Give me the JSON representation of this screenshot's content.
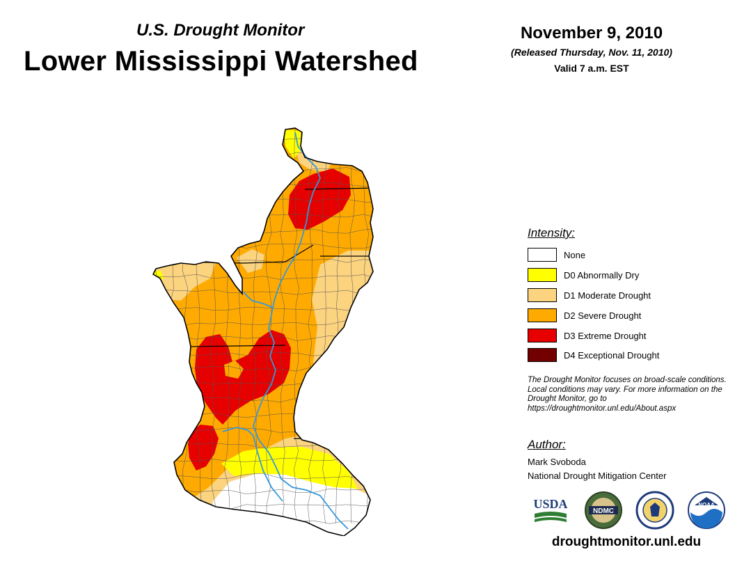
{
  "header": {
    "subtitle": "U.S. Drought Monitor",
    "title": "Lower Mississippi Watershed",
    "date": "November 9, 2010",
    "released": "(Released Thursday, Nov. 11, 2010)",
    "valid": "Valid 7 a.m. EST"
  },
  "legend": {
    "heading": "Intensity:",
    "items": [
      {
        "label": "None",
        "color": "#ffffff"
      },
      {
        "label": "D0 Abnormally Dry",
        "color": "#ffff00"
      },
      {
        "label": "D1 Moderate Drought",
        "color": "#fcd37f"
      },
      {
        "label": "D2 Severe Drought",
        "color": "#ffaa00"
      },
      {
        "label": "D3 Extreme Drought",
        "color": "#e60000"
      },
      {
        "label": "D4 Exceptional Drought",
        "color": "#730000"
      }
    ]
  },
  "note": "The Drought Monitor focuses on broad-scale conditions. Local conditions may vary. For more information on the Drought Monitor, go to https://droughtmonitor.unl.edu/About.aspx",
  "author": {
    "heading": "Author:",
    "name": "Mark Svoboda",
    "org": "National Drought Mitigation Center"
  },
  "logos": [
    {
      "name": "usda-logo",
      "text": "USDA"
    },
    {
      "name": "ndmc-logo",
      "text": "NDMC"
    },
    {
      "name": "doc-seal-logo",
      "text": ""
    },
    {
      "name": "noaa-logo",
      "text": "NOAA"
    }
  ],
  "footer": {
    "url": "droughtmonitor.unl.edu"
  },
  "map": {
    "colors": {
      "d0": "#ffff00",
      "d1": "#fcd37f",
      "d2": "#ffaa00",
      "d3": "#e60000",
      "none": "#ffffff",
      "border": "#000000",
      "county": "#555555",
      "river": "#3399dd"
    }
  }
}
